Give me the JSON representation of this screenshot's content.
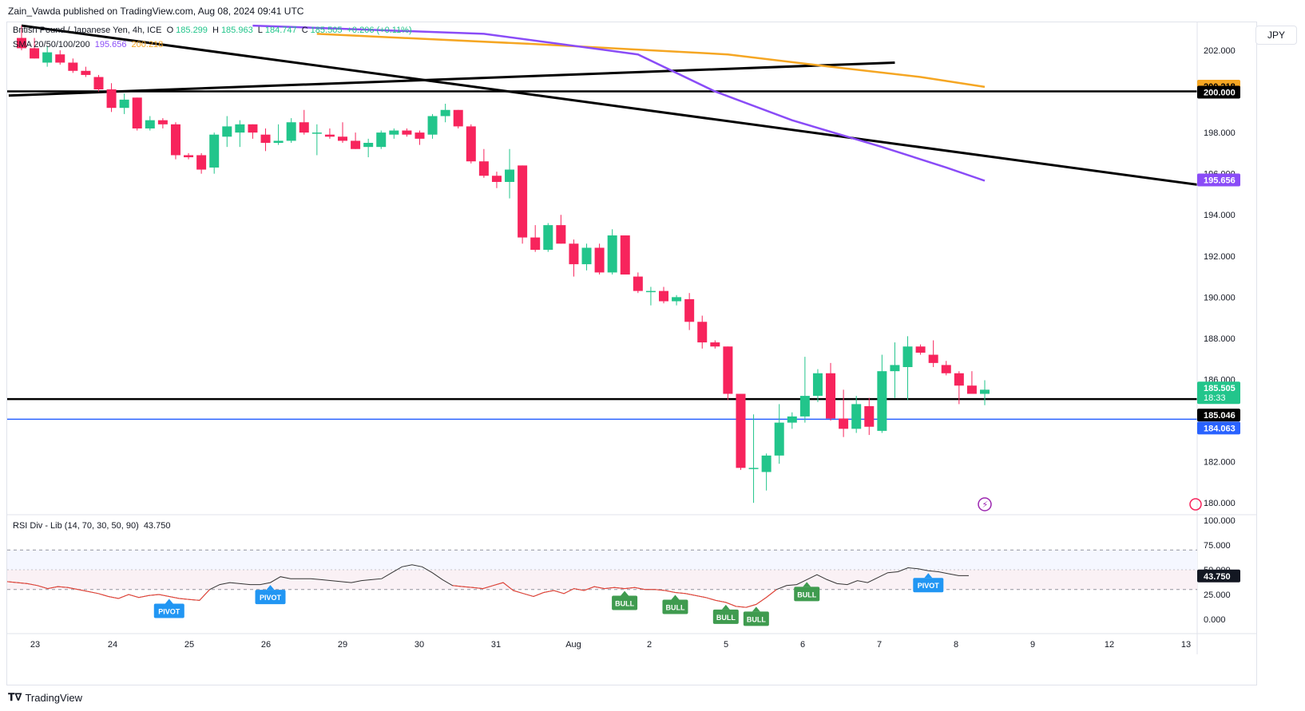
{
  "header": {
    "text": "Zain_Vawda published on TradingView.com, Aug 08, 2024 09:41 UTC"
  },
  "legend": {
    "symbol": "British Pound / Japanese Yen, 4h, ICE",
    "open_label": "O",
    "open": "185.299",
    "high_label": "H",
    "high": "185.963",
    "low_label": "L",
    "low": "184.747",
    "close_label": "C",
    "close": "185.505",
    "change": "+0.206 (+0.11%)",
    "sma_label": "SMA 20/50/100/200",
    "sma_val1": "195.656",
    "sma_val2": "200.218"
  },
  "currency_button": "JPY",
  "rsi_legend": {
    "name": "RSI Div - Lib (14, 70, 30, 50, 90)",
    "value": "43.750"
  },
  "brand": {
    "name": "TradingView"
  },
  "colors": {
    "up": "#22c58b",
    "down": "#f7245c",
    "sma_purple": "#8a4cf7",
    "sma_orange": "#f5a623",
    "blue_level": "#2962ff",
    "trend": "#000000",
    "rsi_line": "#333333",
    "rsi_bear_line": "#f44336",
    "label_bull": "#3f9b4f",
    "label_pivot": "#2196f3"
  },
  "chart_data": {
    "type": "candlestick",
    "symbol": "British Pound / Japanese Yen",
    "timeframe": "4h",
    "x_labels": [
      "23",
      "24",
      "25",
      "26",
      "29",
      "30",
      "31",
      "Aug",
      "2",
      "5",
      "6",
      "7",
      "8",
      "9",
      "12",
      "13"
    ],
    "y_ticks": [
      "202.000",
      "200.000",
      "198.000",
      "196.000",
      "194.000",
      "192.000",
      "190.000",
      "188.000",
      "186.000",
      "182.000",
      "180.000"
    ],
    "ylim": [
      179.7,
      203.3
    ],
    "candles": [
      {
        "o": 202.6,
        "h": 203.2,
        "l": 202.0,
        "c": 202.1
      },
      {
        "o": 202.1,
        "h": 202.6,
        "l": 201.6,
        "c": 201.6
      },
      {
        "o": 201.4,
        "h": 202.2,
        "l": 201.2,
        "c": 201.9
      },
      {
        "o": 201.8,
        "h": 202.0,
        "l": 201.3,
        "c": 201.4
      },
      {
        "o": 201.4,
        "h": 201.6,
        "l": 200.9,
        "c": 201.0
      },
      {
        "o": 201.0,
        "h": 201.2,
        "l": 200.7,
        "c": 200.8
      },
      {
        "o": 200.7,
        "h": 200.8,
        "l": 200.0,
        "c": 200.1
      },
      {
        "o": 200.1,
        "h": 200.4,
        "l": 199.0,
        "c": 199.2
      },
      {
        "o": 199.2,
        "h": 199.9,
        "l": 198.9,
        "c": 199.6
      },
      {
        "o": 199.7,
        "h": 199.7,
        "l": 198.1,
        "c": 198.2
      },
      {
        "o": 198.2,
        "h": 198.8,
        "l": 198.1,
        "c": 198.6
      },
      {
        "o": 198.6,
        "h": 198.7,
        "l": 198.2,
        "c": 198.4
      },
      {
        "o": 198.4,
        "h": 198.5,
        "l": 196.7,
        "c": 196.9
      },
      {
        "o": 196.9,
        "h": 197.0,
        "l": 196.7,
        "c": 196.8
      },
      {
        "o": 196.9,
        "h": 197.0,
        "l": 196.0,
        "c": 196.2
      },
      {
        "o": 196.3,
        "h": 198.0,
        "l": 196.0,
        "c": 197.9
      },
      {
        "o": 197.8,
        "h": 198.8,
        "l": 197.3,
        "c": 198.3
      },
      {
        "o": 198.0,
        "h": 198.6,
        "l": 197.3,
        "c": 198.4
      },
      {
        "o": 198.4,
        "h": 198.4,
        "l": 197.7,
        "c": 198.0
      },
      {
        "o": 197.9,
        "h": 198.2,
        "l": 197.1,
        "c": 197.5
      },
      {
        "o": 197.5,
        "h": 198.4,
        "l": 197.4,
        "c": 197.6
      },
      {
        "o": 197.6,
        "h": 198.7,
        "l": 197.5,
        "c": 198.5
      },
      {
        "o": 198.5,
        "h": 199.1,
        "l": 197.9,
        "c": 198.0
      },
      {
        "o": 198.0,
        "h": 198.4,
        "l": 196.9,
        "c": 198.0
      },
      {
        "o": 197.9,
        "h": 198.2,
        "l": 197.7,
        "c": 197.8
      },
      {
        "o": 197.8,
        "h": 198.5,
        "l": 197.5,
        "c": 197.6
      },
      {
        "o": 197.6,
        "h": 198.0,
        "l": 197.2,
        "c": 197.2
      },
      {
        "o": 197.3,
        "h": 197.7,
        "l": 196.8,
        "c": 197.5
      },
      {
        "o": 197.3,
        "h": 198.1,
        "l": 197.2,
        "c": 198.0
      },
      {
        "o": 197.9,
        "h": 198.2,
        "l": 197.7,
        "c": 198.1
      },
      {
        "o": 198.1,
        "h": 198.2,
        "l": 197.8,
        "c": 197.9
      },
      {
        "o": 198.0,
        "h": 198.1,
        "l": 197.4,
        "c": 197.7
      },
      {
        "o": 197.9,
        "h": 198.9,
        "l": 197.7,
        "c": 198.8
      },
      {
        "o": 198.8,
        "h": 199.4,
        "l": 198.5,
        "c": 199.1
      },
      {
        "o": 199.1,
        "h": 199.1,
        "l": 198.2,
        "c": 198.3
      },
      {
        "o": 198.3,
        "h": 198.4,
        "l": 196.5,
        "c": 196.6
      },
      {
        "o": 196.6,
        "h": 197.2,
        "l": 195.8,
        "c": 195.9
      },
      {
        "o": 195.9,
        "h": 196.1,
        "l": 195.3,
        "c": 195.6
      },
      {
        "o": 195.6,
        "h": 197.2,
        "l": 194.8,
        "c": 196.2
      },
      {
        "o": 196.4,
        "h": 196.4,
        "l": 192.6,
        "c": 192.9
      },
      {
        "o": 192.9,
        "h": 193.5,
        "l": 192.2,
        "c": 192.3
      },
      {
        "o": 192.3,
        "h": 193.6,
        "l": 192.2,
        "c": 193.5
      },
      {
        "o": 193.5,
        "h": 194.0,
        "l": 192.6,
        "c": 192.6
      },
      {
        "o": 192.6,
        "h": 192.8,
        "l": 191.0,
        "c": 191.6
      },
      {
        "o": 191.6,
        "h": 192.6,
        "l": 191.3,
        "c": 192.4
      },
      {
        "o": 192.4,
        "h": 192.6,
        "l": 191.1,
        "c": 191.2
      },
      {
        "o": 191.2,
        "h": 193.3,
        "l": 191.1,
        "c": 193.0
      },
      {
        "o": 193.0,
        "h": 193.0,
        "l": 191.1,
        "c": 191.1
      },
      {
        "o": 191.0,
        "h": 191.2,
        "l": 190.2,
        "c": 190.3
      },
      {
        "o": 190.3,
        "h": 190.5,
        "l": 189.6,
        "c": 190.3
      },
      {
        "o": 190.3,
        "h": 190.5,
        "l": 189.7,
        "c": 189.8
      },
      {
        "o": 189.8,
        "h": 190.1,
        "l": 189.6,
        "c": 190.0
      },
      {
        "o": 189.9,
        "h": 190.2,
        "l": 188.4,
        "c": 188.8
      },
      {
        "o": 188.8,
        "h": 189.1,
        "l": 187.5,
        "c": 187.8
      },
      {
        "o": 187.8,
        "h": 187.9,
        "l": 187.5,
        "c": 187.6
      },
      {
        "o": 187.6,
        "h": 187.6,
        "l": 185.0,
        "c": 185.3
      },
      {
        "o": 185.3,
        "h": 185.3,
        "l": 181.6,
        "c": 181.7
      },
      {
        "o": 181.7,
        "h": 184.3,
        "l": 180.0,
        "c": 181.7
      },
      {
        "o": 181.5,
        "h": 182.4,
        "l": 180.6,
        "c": 182.3
      },
      {
        "o": 182.3,
        "h": 184.8,
        "l": 181.9,
        "c": 183.9
      },
      {
        "o": 183.9,
        "h": 184.4,
        "l": 183.6,
        "c": 184.2
      },
      {
        "o": 184.2,
        "h": 187.1,
        "l": 183.9,
        "c": 185.2
      },
      {
        "o": 185.2,
        "h": 186.5,
        "l": 184.9,
        "c": 186.3
      },
      {
        "o": 186.3,
        "h": 186.8,
        "l": 184.0,
        "c": 184.1
      },
      {
        "o": 184.1,
        "h": 185.5,
        "l": 183.2,
        "c": 183.6
      },
      {
        "o": 183.6,
        "h": 185.2,
        "l": 183.4,
        "c": 184.8
      },
      {
        "o": 184.7,
        "h": 185.1,
        "l": 183.3,
        "c": 183.7
      },
      {
        "o": 183.5,
        "h": 187.2,
        "l": 183.4,
        "c": 186.4
      },
      {
        "o": 186.4,
        "h": 187.8,
        "l": 185.1,
        "c": 186.7
      },
      {
        "o": 186.6,
        "h": 188.1,
        "l": 185.0,
        "c": 187.6
      },
      {
        "o": 187.6,
        "h": 187.7,
        "l": 187.2,
        "c": 187.3
      },
      {
        "o": 187.2,
        "h": 187.9,
        "l": 186.6,
        "c": 186.8
      },
      {
        "o": 186.7,
        "h": 186.9,
        "l": 186.2,
        "c": 186.3
      },
      {
        "o": 186.3,
        "h": 186.4,
        "l": 184.8,
        "c": 185.7
      },
      {
        "o": 185.7,
        "h": 186.4,
        "l": 185.4,
        "c": 185.3
      },
      {
        "o": 185.3,
        "h": 185.96,
        "l": 184.75,
        "c": 185.5
      }
    ],
    "lines": {
      "horizontal_black_upper": 200.0,
      "horizontal_black_lower": 185.046,
      "horizontal_blue": 184.063,
      "trend_down": [
        [
          0,
          203.2
        ],
        [
          103,
          194.5
        ]
      ],
      "trend_up": [
        [
          -1,
          199.8
        ],
        [
          68,
          201.4
        ]
      ],
      "sma_purple": [
        [
          18,
          203.2
        ],
        [
          36,
          202.8
        ],
        [
          48,
          201.8
        ],
        [
          54,
          200.0
        ],
        [
          60,
          198.6
        ],
        [
          67,
          197.3
        ],
        [
          72,
          196.3
        ],
        [
          75,
          195.656
        ]
      ],
      "sma_orange": [
        [
          23,
          202.8
        ],
        [
          40,
          202.3
        ],
        [
          55,
          201.8
        ],
        [
          63,
          201.2
        ],
        [
          70,
          200.7
        ],
        [
          75,
          200.218
        ]
      ]
    },
    "price_tags": [
      {
        "value": "200.218",
        "color": "#f5a623"
      },
      {
        "value": "200.000",
        "color": "#000000"
      },
      {
        "value": "195.656",
        "color": "#8a4cf7"
      },
      {
        "value": "185.505",
        "sub": "18:33",
        "color": "#22c58b"
      },
      {
        "value": "185.046",
        "color": "#000000"
      },
      {
        "value": "184.063",
        "color": "#2962ff"
      }
    ],
    "rsi": {
      "y_ticks": [
        "100.000",
        "75.000",
        "50.000",
        "25.000",
        "0.000"
      ],
      "levels": {
        "upper": 70,
        "mid": 50,
        "lower": 30
      },
      "values": [
        38,
        37,
        36,
        34,
        31,
        33,
        32,
        30,
        28,
        26,
        23,
        21,
        25,
        22,
        24,
        25,
        23,
        21,
        20,
        19,
        30,
        35,
        37,
        36,
        35,
        35,
        37,
        43,
        41,
        41,
        41,
        40,
        39,
        38,
        37,
        39,
        40,
        41,
        47,
        53,
        55,
        53,
        47,
        40,
        34,
        33,
        32,
        31,
        34,
        37,
        29,
        26,
        23,
        27,
        29,
        26,
        31,
        29,
        33,
        31,
        32,
        31,
        32,
        30,
        30,
        29,
        27,
        26,
        24,
        22,
        19,
        17,
        13,
        12,
        15,
        22,
        30,
        34,
        35,
        40,
        45,
        40,
        36,
        35,
        39,
        37,
        42,
        47,
        48,
        52,
        51,
        49,
        48,
        46,
        44,
        44
      ],
      "bear_segments": [
        [
          0,
          20
        ],
        [
          44,
          76
        ]
      ],
      "labels": [
        {
          "text": "PIVOT",
          "i": 16,
          "kind": "pivot"
        },
        {
          "text": "PIVOT",
          "i": 26,
          "kind": "pivot"
        },
        {
          "text": "BULL",
          "i": 61,
          "kind": "bull"
        },
        {
          "text": "BULL",
          "i": 66,
          "kind": "bull"
        },
        {
          "text": "BULL",
          "i": 71,
          "kind": "bull"
        },
        {
          "text": "BULL",
          "i": 74,
          "kind": "bull"
        },
        {
          "text": "BULL",
          "i": 79,
          "kind": "bull"
        },
        {
          "text": "PIVOT",
          "i": 91,
          "kind": "pivot"
        }
      ],
      "current": "43.750"
    }
  }
}
